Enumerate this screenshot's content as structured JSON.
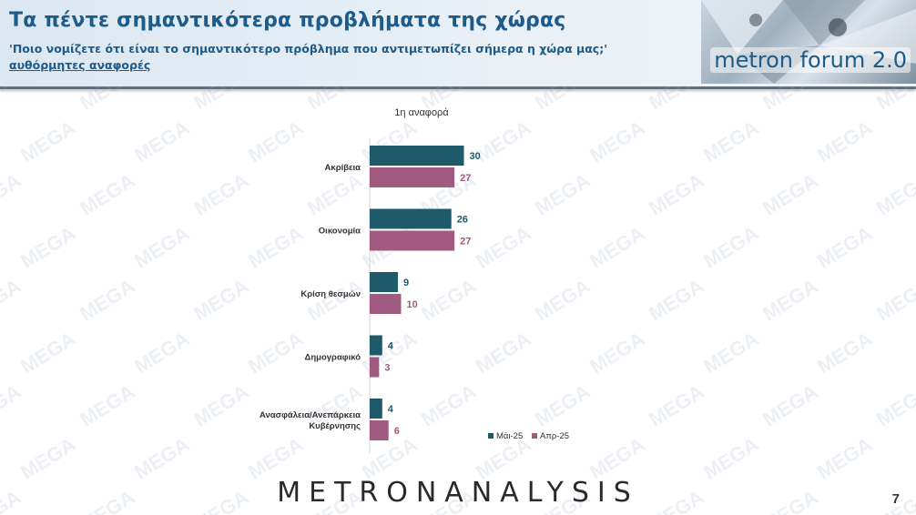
{
  "header": {
    "title": "Τα πέντε σημαντικότερα προβλήματα της χώρας",
    "question": "'Ποιο νομίζετε ότι είναι το σημαντικότερο πρόβλημα που αντιμετωπίζει σήμερα η χώρα μας;'",
    "note": "αυθόρμητες αναφορές"
  },
  "logo": {
    "forum": "metron forum 2.0",
    "company": "METRONANALYSIS"
  },
  "watermark": "MEGA",
  "page_number": "7",
  "colors": {
    "series_may": "#1f5a6b",
    "series_apr": "#a05a7f",
    "title_blue": "#1d5b8a"
  },
  "chart_data": {
    "type": "bar",
    "orientation": "horizontal",
    "title": "1η αναφορά",
    "categories": [
      "Ακρίβεια",
      "Οικονομία",
      "Κρίση θεσμών",
      "Δημογραφικό",
      "Αναςφάλεια/Ανεπάρκεια Κυβέρνησης"
    ],
    "category_lines": [
      [
        "Ακρίβεια"
      ],
      [
        "Οικονομία"
      ],
      [
        "Κρίση θεσμών"
      ],
      [
        "Δημογραφικό"
      ],
      [
        "Ανασφάλεια/Ανεπάρκεια",
        "Κυβέρνησης"
      ]
    ],
    "series": [
      {
        "name": "Μάι-25",
        "values": [
          30,
          26,
          9,
          4,
          4
        ],
        "color": "#1f5a6b"
      },
      {
        "name": "Απρ-25",
        "values": [
          27,
          27,
          10,
          3,
          6
        ],
        "color": "#a05a7f"
      }
    ],
    "xlim": [
      0,
      100
    ],
    "grid": false,
    "legend": "bottom-right"
  }
}
